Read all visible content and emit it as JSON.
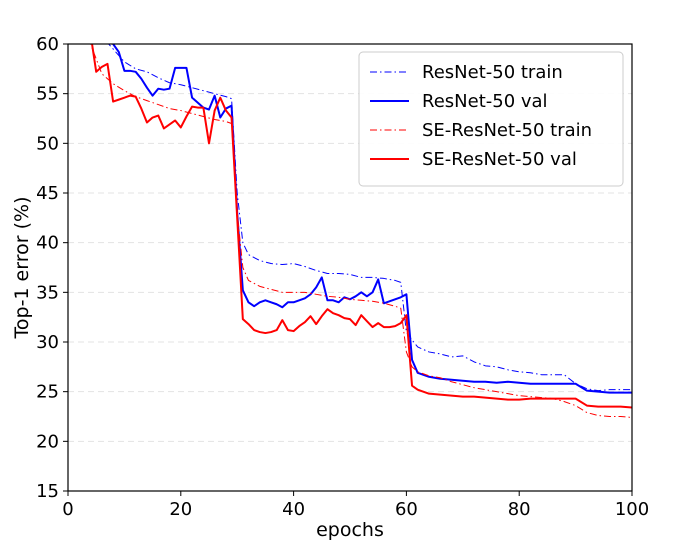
{
  "chart_data": {
    "type": "line",
    "xlabel": "epochs",
    "ylabel": "Top-1 error (%)",
    "xlim": [
      0,
      100
    ],
    "ylim": [
      15,
      60
    ],
    "xticks": [
      0,
      20,
      40,
      60,
      80,
      100
    ],
    "yticks": [
      15,
      20,
      25,
      30,
      35,
      40,
      45,
      50,
      55,
      60
    ],
    "grid": "horizontal-dashed",
    "legend": "top-right",
    "series": [
      {
        "name": "ResNet-50 train",
        "color": "#0000ff",
        "style": "dashdot",
        "x": [
          0,
          4,
          8,
          10,
          12,
          14,
          16,
          18,
          20,
          22,
          24,
          26,
          28,
          29,
          30,
          31,
          32,
          34,
          36,
          38,
          40,
          42,
          44,
          46,
          48,
          50,
          52,
          54,
          56,
          58,
          59,
          60,
          61,
          62,
          64,
          66,
          68,
          70,
          72,
          74,
          76,
          78,
          80,
          82,
          84,
          86,
          88,
          90,
          92,
          94,
          96,
          98,
          100
        ],
        "y": [
          80,
          62,
          59.5,
          58.2,
          57.5,
          57.2,
          56.6,
          56.1,
          55.9,
          55.6,
          55.3,
          55.0,
          54.7,
          54.5,
          45,
          40,
          38.8,
          38.2,
          37.9,
          37.8,
          37.9,
          37.6,
          37.2,
          36.9,
          36.9,
          36.8,
          36.5,
          36.5,
          36.4,
          36.2,
          36.0,
          31,
          30.2,
          29.5,
          29.0,
          28.8,
          28.5,
          28.6,
          28.0,
          27.6,
          27.5,
          27.2,
          27.0,
          26.9,
          26.7,
          26.7,
          26.7,
          25.8,
          25.3,
          25.1,
          25.2,
          25.2,
          25.2
        ]
      },
      {
        "name": "ResNet-50 val",
        "color": "#0000ff",
        "style": "solid",
        "x": [
          0,
          4,
          8,
          9,
          10,
          11,
          12,
          13,
          14,
          15,
          16,
          17,
          18,
          19,
          20,
          21,
          22,
          23,
          24,
          25,
          26,
          27,
          28,
          29,
          30,
          31,
          32,
          33,
          34,
          35,
          36,
          37,
          38,
          39,
          40,
          41,
          42,
          43,
          44,
          45,
          46,
          47,
          48,
          49,
          50,
          51,
          52,
          53,
          54,
          55,
          56,
          57,
          58,
          59,
          60,
          61,
          62,
          64,
          66,
          68,
          70,
          72,
          74,
          76,
          78,
          80,
          82,
          84,
          86,
          88,
          90,
          92,
          94,
          96,
          98,
          100
        ],
        "y": [
          78,
          62,
          60,
          59.2,
          57.3,
          57.3,
          57.2,
          56.5,
          55.6,
          54.8,
          55.5,
          55.4,
          55.5,
          57.6,
          57.6,
          57.6,
          54.6,
          54.1,
          53.6,
          53.4,
          54.8,
          52.6,
          53.5,
          53.8,
          43,
          35.2,
          34.0,
          33.6,
          34.0,
          34.2,
          34.0,
          33.8,
          33.5,
          34.0,
          34.0,
          34.2,
          34.4,
          34.8,
          35.5,
          36.5,
          34.2,
          34.2,
          34.0,
          34.5,
          34.3,
          34.6,
          35.0,
          34.6,
          35.0,
          36.3,
          33.9,
          34.1,
          34.3,
          34.5,
          34.8,
          28.2,
          26.9,
          26.5,
          26.3,
          26.2,
          26.1,
          26.0,
          26.0,
          25.9,
          26.0,
          25.9,
          25.8,
          25.8,
          25.8,
          25.8,
          25.8,
          25.1,
          25.0,
          24.9,
          24.9,
          24.9
        ]
      },
      {
        "name": "SE-ResNet-50 train",
        "color": "#ff0000",
        "style": "dashdot",
        "x": [
          0,
          4,
          6,
          8,
          10,
          12,
          14,
          16,
          18,
          20,
          22,
          24,
          26,
          28,
          29,
          30,
          31,
          32,
          34,
          36,
          38,
          40,
          42,
          44,
          46,
          48,
          50,
          52,
          54,
          56,
          58,
          59,
          60,
          61,
          62,
          64,
          66,
          68,
          70,
          72,
          74,
          76,
          78,
          80,
          82,
          84,
          86,
          88,
          90,
          92,
          94,
          96,
          98,
          100
        ],
        "y": [
          78,
          60,
          57,
          56,
          55.3,
          54.7,
          54.3,
          53.9,
          53.5,
          53.3,
          53.0,
          52.7,
          52.4,
          52.2,
          52.0,
          43,
          37.5,
          36.2,
          35.6,
          35.3,
          35.0,
          35.0,
          35.0,
          34.8,
          34.6,
          34.5,
          34.3,
          34.2,
          34.1,
          33.9,
          33.6,
          33.4,
          29,
          27.5,
          27.0,
          26.6,
          26.4,
          26.0,
          25.7,
          25.4,
          25.2,
          25.0,
          24.8,
          24.6,
          24.5,
          24.4,
          24.3,
          24.0,
          23.6,
          22.9,
          22.6,
          22.5,
          22.5,
          22.4
        ]
      },
      {
        "name": "SE-ResNet-50 val",
        "color": "#ff0000",
        "style": "solid",
        "x": [
          0,
          4,
          5,
          6,
          7,
          8,
          9,
          10,
          11,
          12,
          13,
          14,
          15,
          16,
          17,
          18,
          19,
          20,
          21,
          22,
          23,
          24,
          25,
          26,
          27,
          28,
          29,
          30,
          31,
          32,
          33,
          34,
          35,
          36,
          37,
          38,
          39,
          40,
          41,
          42,
          43,
          44,
          45,
          46,
          47,
          48,
          49,
          50,
          51,
          52,
          53,
          54,
          55,
          56,
          57,
          58,
          59,
          60,
          61,
          62,
          64,
          66,
          68,
          70,
          72,
          74,
          76,
          78,
          80,
          82,
          84,
          86,
          88,
          90,
          92,
          94,
          96,
          98,
          100
        ],
        "y": [
          77,
          61,
          57.2,
          57.7,
          58,
          54.2,
          54.4,
          54.6,
          54.8,
          54.7,
          53.5,
          52.1,
          52.6,
          52.8,
          51.5,
          51.9,
          52.3,
          51.6,
          52.7,
          53.7,
          53.6,
          53.6,
          50.0,
          53.3,
          54.6,
          53.3,
          52.6,
          42.5,
          32.3,
          31.8,
          31.2,
          31.0,
          30.9,
          31.0,
          31.2,
          32.2,
          31.2,
          31.1,
          31.6,
          32.0,
          32.6,
          31.8,
          32.6,
          33.3,
          32.9,
          32.7,
          32.4,
          32.3,
          31.7,
          32.7,
          32.1,
          31.5,
          31.9,
          31.5,
          31.5,
          31.6,
          31.9,
          32.7,
          25.6,
          25.2,
          24.8,
          24.7,
          24.6,
          24.5,
          24.5,
          24.4,
          24.3,
          24.2,
          24.2,
          24.3,
          24.3,
          24.3,
          24.3,
          24.3,
          23.6,
          23.5,
          23.5,
          23.5,
          23.4
        ]
      }
    ]
  }
}
